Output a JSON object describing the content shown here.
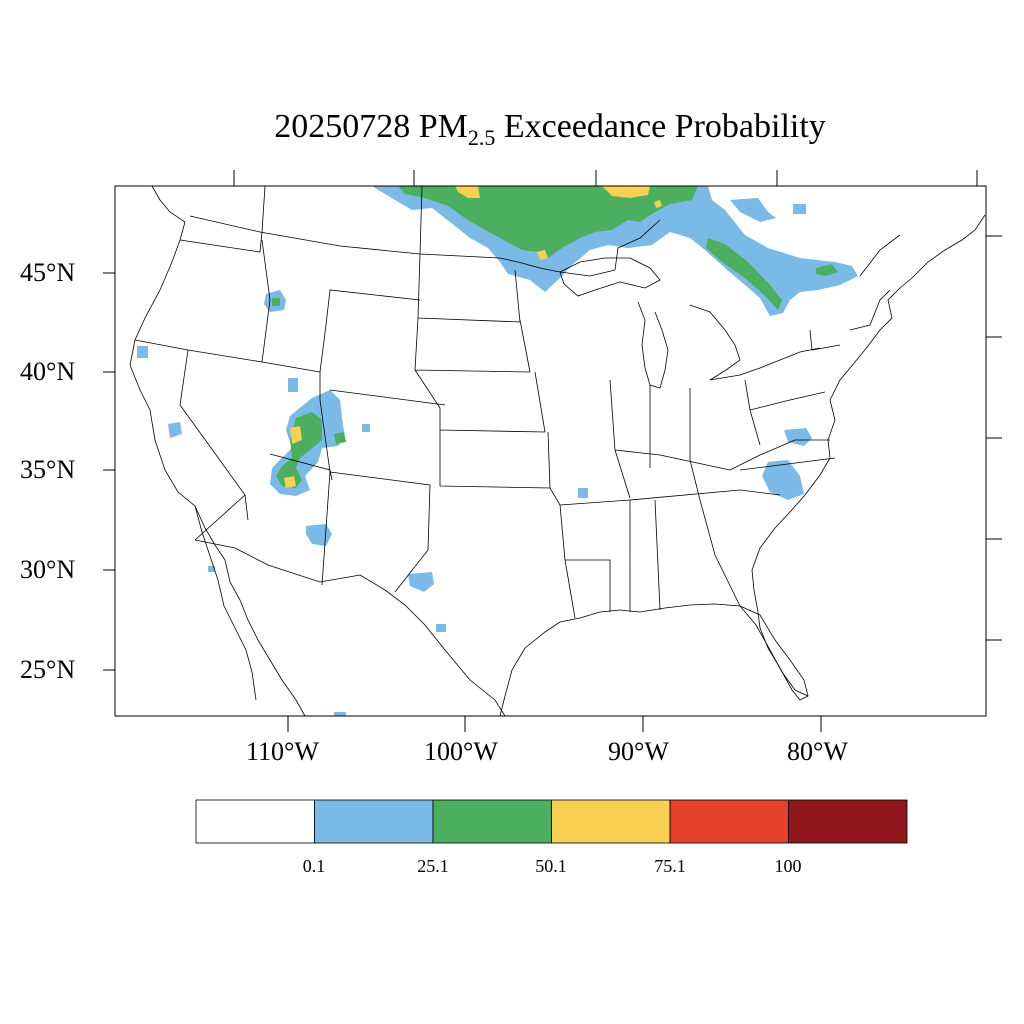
{
  "title": {
    "prefix": "20250728 PM",
    "subscript": "2.5",
    "suffix": " Exceedance Probability"
  },
  "map": {
    "region": "Contiguous United States",
    "lat_labels": [
      "45°N",
      "40°N",
      "35°N",
      "30°N",
      "25°N"
    ],
    "lon_labels": [
      "110°W",
      "100°W",
      "90°W",
      "80°W"
    ],
    "outline_color": "#000000"
  },
  "colorbar": {
    "colors": [
      "#ffffff",
      "#7bb9e6",
      "#4caf5f",
      "#f9d052",
      "#e34129",
      "#8f161b"
    ],
    "tick_labels": [
      "0.1",
      "25.1",
      "50.1",
      "75.1",
      "100"
    ]
  },
  "legend_colors": {
    "blue": "#7bb9e6",
    "green": "#4caf5f",
    "yellow": "#f9d052"
  }
}
